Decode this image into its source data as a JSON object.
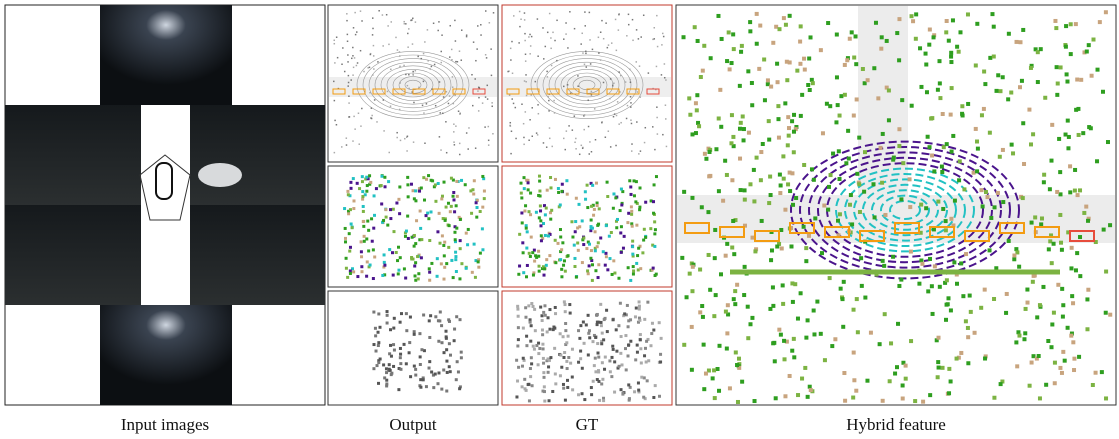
{
  "captions": [
    "Input images",
    "Output",
    "GT",
    "Hybrid feature"
  ]
}
